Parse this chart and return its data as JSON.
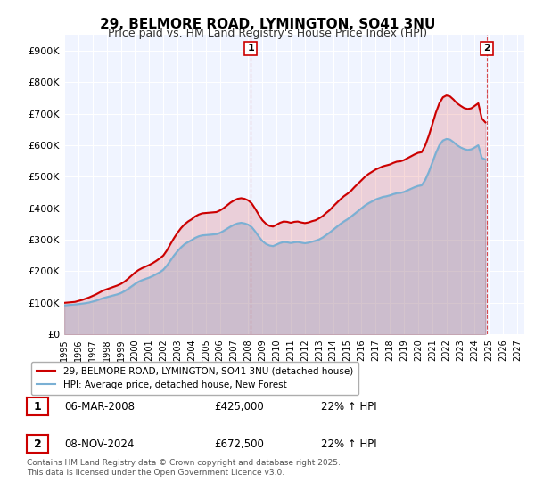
{
  "title_line1": "29, BELMORE ROAD, LYMINGTON, SO41 3NU",
  "title_line2": "Price paid vs. HM Land Registry's House Price Index (HPI)",
  "ylabel": "",
  "ylim": [
    0,
    950000
  ],
  "yticks": [
    0,
    100000,
    200000,
    300000,
    400000,
    500000,
    600000,
    700000,
    800000,
    900000
  ],
  "ytick_labels": [
    "£0",
    "£100K",
    "£200K",
    "£300K",
    "£400K",
    "£500K",
    "£600K",
    "£700K",
    "£800K",
    "£900K"
  ],
  "xlim_start": 1995.0,
  "xlim_end": 2027.5,
  "background_color": "#ffffff",
  "plot_bg_color": "#f0f4ff",
  "grid_color": "#ffffff",
  "red_color": "#cc0000",
  "blue_color": "#7ab0d4",
  "sale1_x": 2008.17,
  "sale1_y": 425000,
  "sale1_label": "1",
  "sale2_x": 2024.85,
  "sale2_y": 672500,
  "sale2_label": "2",
  "annotation1_date": "06-MAR-2008",
  "annotation1_price": "£425,000",
  "annotation1_hpi": "22% ↑ HPI",
  "annotation2_date": "08-NOV-2024",
  "annotation2_price": "£672,500",
  "annotation2_hpi": "22% ↑ HPI",
  "legend_label_red": "29, BELMORE ROAD, LYMINGTON, SO41 3NU (detached house)",
  "legend_label_blue": "HPI: Average price, detached house, New Forest",
  "footer": "Contains HM Land Registry data © Crown copyright and database right 2025.\nThis data is licensed under the Open Government Licence v3.0.",
  "hpi_years": [
    1995.0,
    1995.25,
    1995.5,
    1995.75,
    1996.0,
    1996.25,
    1996.5,
    1996.75,
    1997.0,
    1997.25,
    1997.5,
    1997.75,
    1998.0,
    1998.25,
    1998.5,
    1998.75,
    1999.0,
    1999.25,
    1999.5,
    1999.75,
    2000.0,
    2000.25,
    2000.5,
    2000.75,
    2001.0,
    2001.25,
    2001.5,
    2001.75,
    2002.0,
    2002.25,
    2002.5,
    2002.75,
    2003.0,
    2003.25,
    2003.5,
    2003.75,
    2004.0,
    2004.25,
    2004.5,
    2004.75,
    2005.0,
    2005.25,
    2005.5,
    2005.75,
    2006.0,
    2006.25,
    2006.5,
    2006.75,
    2007.0,
    2007.25,
    2007.5,
    2007.75,
    2008.0,
    2008.25,
    2008.5,
    2008.75,
    2009.0,
    2009.25,
    2009.5,
    2009.75,
    2010.0,
    2010.25,
    2010.5,
    2010.75,
    2011.0,
    2011.25,
    2011.5,
    2011.75,
    2012.0,
    2012.25,
    2012.5,
    2012.75,
    2013.0,
    2013.25,
    2013.5,
    2013.75,
    2014.0,
    2014.25,
    2014.5,
    2014.75,
    2015.0,
    2015.25,
    2015.5,
    2015.75,
    2016.0,
    2016.25,
    2016.5,
    2016.75,
    2017.0,
    2017.25,
    2017.5,
    2017.75,
    2018.0,
    2018.25,
    2018.5,
    2018.75,
    2019.0,
    2019.25,
    2019.5,
    2019.75,
    2020.0,
    2020.25,
    2020.5,
    2020.75,
    2021.0,
    2021.25,
    2021.5,
    2021.75,
    2022.0,
    2022.25,
    2022.5,
    2022.75,
    2023.0,
    2023.25,
    2023.5,
    2023.75,
    2024.0,
    2024.25,
    2024.5,
    2024.75
  ],
  "hpi_values": [
    92000,
    93000,
    94000,
    95000,
    96000,
    97500,
    99000,
    101000,
    104000,
    107000,
    111000,
    115000,
    118000,
    121000,
    124000,
    127000,
    131000,
    137000,
    144000,
    152000,
    160000,
    167000,
    172000,
    176000,
    180000,
    185000,
    191000,
    197000,
    205000,
    218000,
    234000,
    250000,
    264000,
    276000,
    286000,
    293000,
    299000,
    306000,
    311000,
    314000,
    315000,
    316000,
    317000,
    318000,
    322000,
    328000,
    335000,
    342000,
    348000,
    352000,
    354000,
    352000,
    348000,
    340000,
    326000,
    310000,
    296000,
    287000,
    282000,
    280000,
    285000,
    290000,
    293000,
    292000,
    290000,
    292000,
    293000,
    291000,
    289000,
    291000,
    294000,
    297000,
    301000,
    307000,
    315000,
    323000,
    332000,
    341000,
    350000,
    358000,
    365000,
    373000,
    382000,
    391000,
    400000,
    409000,
    416000,
    422000,
    428000,
    432000,
    436000,
    438000,
    441000,
    445000,
    448000,
    449000,
    452000,
    457000,
    462000,
    467000,
    471000,
    473000,
    490000,
    515000,
    545000,
    575000,
    600000,
    615000,
    620000,
    618000,
    610000,
    600000,
    593000,
    588000,
    585000,
    587000,
    593000,
    600000,
    560000,
    555000
  ],
  "red_years": [
    1995.0,
    1995.25,
    1995.5,
    1995.75,
    1996.0,
    1996.25,
    1996.5,
    1996.75,
    1997.0,
    1997.25,
    1997.5,
    1997.75,
    1998.0,
    1998.25,
    1998.5,
    1998.75,
    1999.0,
    1999.25,
    1999.5,
    1999.75,
    2000.0,
    2000.25,
    2000.5,
    2000.75,
    2001.0,
    2001.25,
    2001.5,
    2001.75,
    2002.0,
    2002.25,
    2002.5,
    2002.75,
    2003.0,
    2003.25,
    2003.5,
    2003.75,
    2004.0,
    2004.25,
    2004.5,
    2004.75,
    2005.0,
    2005.25,
    2005.5,
    2005.75,
    2006.0,
    2006.25,
    2006.5,
    2006.75,
    2007.0,
    2007.25,
    2007.5,
    2007.75,
    2008.0,
    2008.25,
    2008.5,
    2008.75,
    2009.0,
    2009.25,
    2009.5,
    2009.75,
    2010.0,
    2010.25,
    2010.5,
    2010.75,
    2011.0,
    2011.25,
    2011.5,
    2011.75,
    2012.0,
    2012.25,
    2012.5,
    2012.75,
    2013.0,
    2013.25,
    2013.5,
    2013.75,
    2014.0,
    2014.25,
    2014.5,
    2014.75,
    2015.0,
    2015.25,
    2015.5,
    2015.75,
    2016.0,
    2016.25,
    2016.5,
    2016.75,
    2017.0,
    2017.25,
    2017.5,
    2017.75,
    2018.0,
    2018.25,
    2018.5,
    2018.75,
    2019.0,
    2019.25,
    2019.5,
    2019.75,
    2020.0,
    2020.25,
    2020.5,
    2020.75,
    2021.0,
    2021.25,
    2021.5,
    2021.75,
    2022.0,
    2022.25,
    2022.5,
    2022.75,
    2023.0,
    2023.25,
    2023.5,
    2023.75,
    2024.0,
    2024.25,
    2024.5,
    2024.75
  ],
  "red_values": [
    100000,
    101000,
    102000,
    103000,
    106000,
    109000,
    113000,
    117000,
    122000,
    127000,
    133000,
    139000,
    143000,
    147000,
    151000,
    155000,
    160000,
    167000,
    176000,
    186000,
    196000,
    204000,
    210000,
    215000,
    220000,
    226000,
    233000,
    241000,
    250000,
    266000,
    286000,
    305000,
    322000,
    337000,
    349000,
    358000,
    365000,
    374000,
    380000,
    384000,
    385000,
    386000,
    387000,
    388000,
    393000,
    400000,
    409000,
    418000,
    425000,
    430000,
    432000,
    430000,
    425000,
    415000,
    398000,
    379000,
    362000,
    351000,
    344000,
    342000,
    348000,
    354000,
    358000,
    357000,
    354000,
    357000,
    358000,
    355000,
    353000,
    355000,
    359000,
    362000,
    368000,
    375000,
    385000,
    394000,
    406000,
    417000,
    428000,
    438000,
    446000,
    455000,
    467000,
    478000,
    489000,
    500000,
    509000,
    516000,
    523000,
    528000,
    533000,
    536000,
    539000,
    544000,
    548000,
    549000,
    553000,
    559000,
    565000,
    571000,
    576000,
    578000,
    599000,
    630000,
    666000,
    703000,
    733000,
    752000,
    758000,
    755000,
    745000,
    733000,
    725000,
    718000,
    715000,
    717000,
    725000,
    733000,
    685000,
    672500
  ]
}
